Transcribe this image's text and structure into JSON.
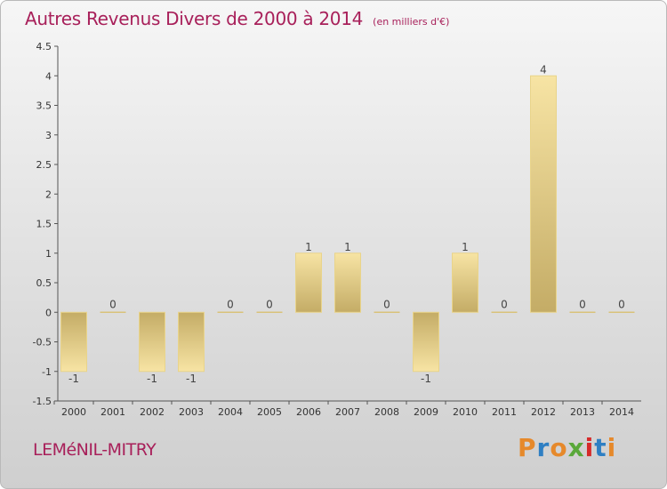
{
  "header": {
    "title": "Autres Revenus Divers de 2000 à 2014",
    "unit": "(en milliers d'€)"
  },
  "footer": {
    "commune": "LEMéNIL-MITRY",
    "brand": "Proxiti"
  },
  "colors": {
    "title": "#a8205a",
    "bar_light": "#f7e4a4",
    "bar_dark": "#c4ac66",
    "brand_letters": [
      "#e6892b",
      "#2e7fc3",
      "#e6892b",
      "#5aa83a",
      "#d62a2a",
      "#2e7fc3",
      "#e6892b"
    ]
  },
  "chart_data": {
    "type": "bar",
    "categories": [
      "2000",
      "2001",
      "2002",
      "2003",
      "2004",
      "2005",
      "2006",
      "2007",
      "2008",
      "2009",
      "2010",
      "2011",
      "2012",
      "2013",
      "2014"
    ],
    "values": [
      -1,
      0,
      -1,
      -1,
      0,
      0,
      1,
      1,
      0,
      -1,
      1,
      0,
      4,
      0,
      0
    ],
    "labels": [
      "-1",
      "0",
      "-1",
      "-1",
      "0",
      "0",
      "1",
      "1",
      "0",
      "-1",
      "1",
      "0",
      "4",
      "0",
      "0"
    ],
    "ylim": [
      -1.5,
      4.5
    ],
    "yticks": [
      "-1.5",
      "-1",
      "-0.5",
      "0",
      "0.5",
      "1",
      "1.5",
      "2",
      "2.5",
      "3",
      "3.5",
      "4",
      "4.5"
    ],
    "ytick_values": [
      -1.5,
      -1,
      -0.5,
      0,
      0.5,
      1,
      1.5,
      2,
      2.5,
      3,
      3.5,
      4,
      4.5
    ],
    "grid": false
  }
}
